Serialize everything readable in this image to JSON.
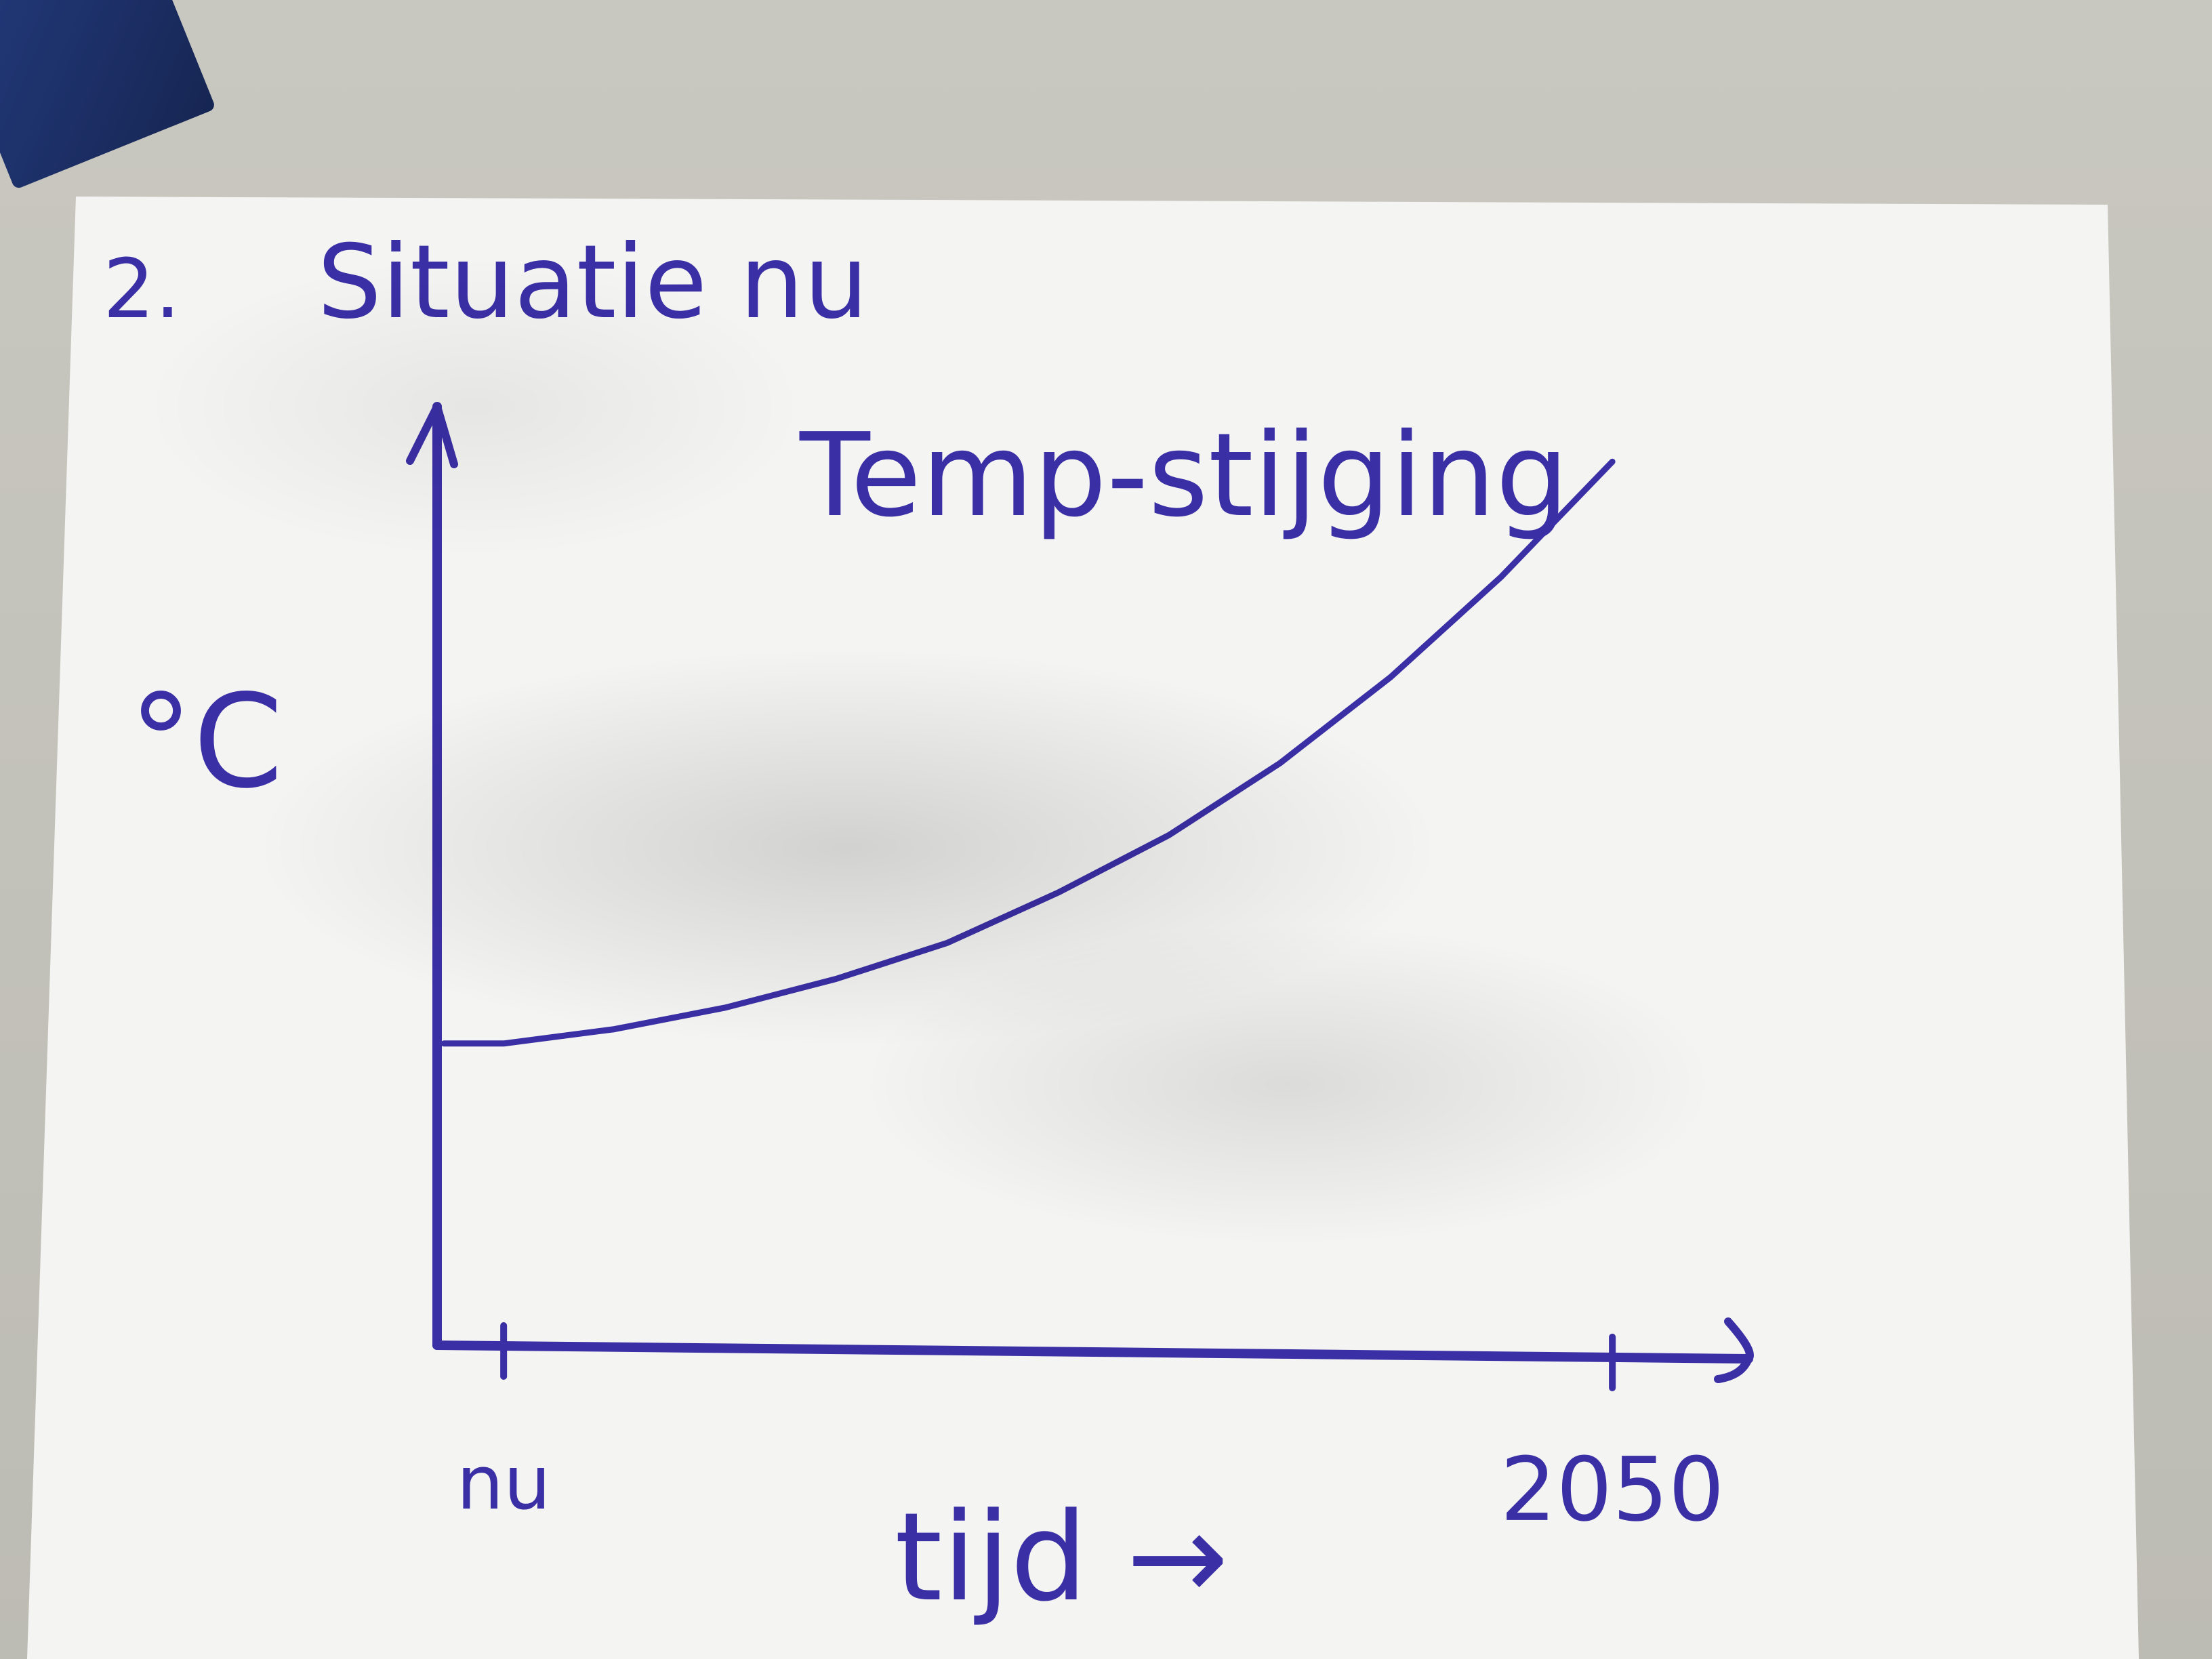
{
  "heading": {
    "number": "2.",
    "text": "Situatie nu"
  },
  "chart_data": {
    "type": "line",
    "title": "Temp-stijging",
    "ylabel": "°C",
    "xlabel": "tijd →",
    "x_ticks": [
      "nu",
      "2050"
    ],
    "x": [
      0,
      0.1,
      0.2,
      0.3,
      0.4,
      0.5,
      0.6,
      0.7,
      0.8,
      0.9,
      1.0
    ],
    "values": [
      0.42,
      0.44,
      0.47,
      0.51,
      0.56,
      0.63,
      0.71,
      0.81,
      0.93,
      1.07,
      1.23
    ],
    "ylim": [
      0,
      1.25
    ],
    "xlim": [
      -0.06,
      1.08
    ],
    "grid": false,
    "line_color": "#3b2fa6"
  },
  "colors": {
    "ink": "#3b2fa6",
    "paper": "#f4f4f2"
  }
}
